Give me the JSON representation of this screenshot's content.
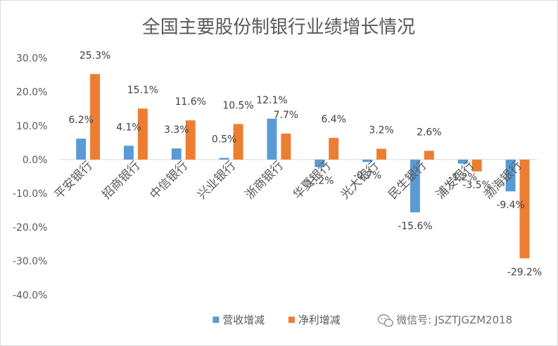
{
  "chart_data": {
    "type": "bar",
    "title": "全国主要股份制银行业绩增长情况",
    "categories": [
      "平安银行",
      "招商银行",
      "中信银行",
      "兴业银行",
      "浙商银行",
      "华夏银行",
      "光大银行",
      "民生银行",
      "浦发银行",
      "渤海银行"
    ],
    "series": [
      {
        "name": "营收增减",
        "color": "#5b9bd5",
        "values": [
          6.2,
          4.1,
          3.3,
          0.5,
          12.1,
          -2.2,
          -0.7,
          -15.6,
          -1.2,
          -9.4
        ]
      },
      {
        "name": "净利增减",
        "color": "#ed7d31",
        "values": [
          25.3,
          15.1,
          11.6,
          10.5,
          7.7,
          6.4,
          3.2,
          2.6,
          -3.5,
          -29.2
        ]
      }
    ],
    "yticks": [
      30,
      20,
      10,
      0,
      -10,
      -20,
      -30,
      -40
    ],
    "ylim": [
      -40,
      30
    ],
    "tick_suffix": "%",
    "grid": false,
    "legend_position": "bottom"
  },
  "watermark": {
    "text": "微信号: JSZTJGZM2018",
    "icon": "wechat-icon"
  }
}
